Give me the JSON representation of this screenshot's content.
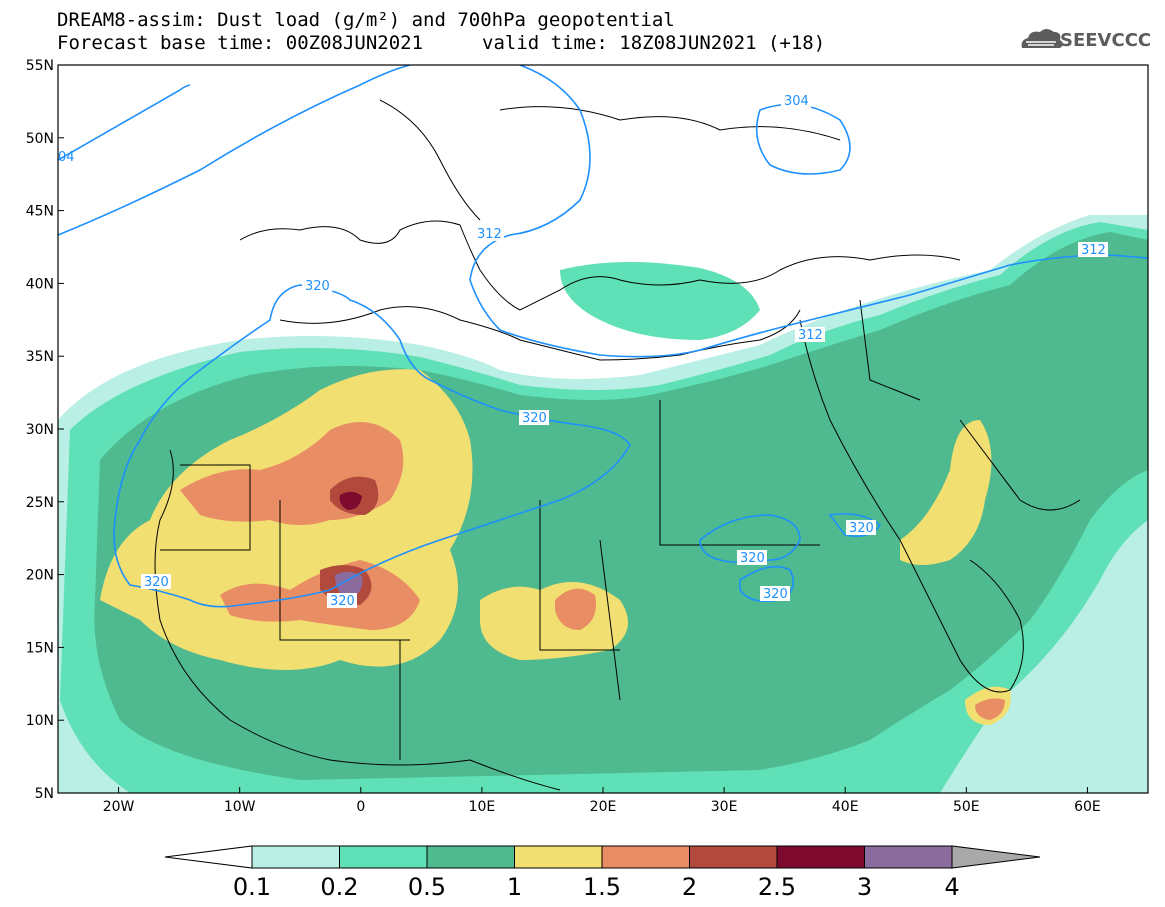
{
  "header": {
    "title_line1": "DREAM8-assim: Dust load (g/m²) and 700hPa geopotential",
    "title_line2": "Forecast base time: 00Z08JUN2021",
    "valid_time": "valid time: 18Z08JUN2021 (+18)"
  },
  "logo": {
    "text": "SEEVCCC",
    "icon": "cloud-logo-icon"
  },
  "axes": {
    "lat_labels": [
      "55N",
      "50N",
      "45N",
      "40N",
      "35N",
      "30N",
      "25N",
      "20N",
      "15N",
      "10N",
      "5N"
    ],
    "lon_labels": [
      "20W",
      "10W",
      "0",
      "10E",
      "20E",
      "30E",
      "40E",
      "50E",
      "60E"
    ]
  },
  "contour_labels": {
    "c304": "304",
    "c312": "312",
    "c320": "320",
    "c04": "04"
  },
  "colorbar": {
    "labels": [
      "0.1",
      "0.2",
      "0.5",
      "1",
      "1.5",
      "2",
      "2.5",
      "3",
      "4"
    ],
    "colors": [
      "#ffffff",
      "#b9efe4",
      "#5fe0b6",
      "#4fb98f",
      "#f2df71",
      "#e98d65",
      "#b14a3d",
      "#7e0b2f",
      "#8b6a9e",
      "#a9a9a9"
    ]
  },
  "map": {
    "extent": {
      "lon_min": -25,
      "lon_max": 65,
      "lat_min": 5,
      "lat_max": 55
    },
    "fill_colors": {
      "level_0_1": "#b9efe4",
      "level_0_2": "#5fe0b6",
      "level_0_5": "#4fb98f",
      "level_1": "#f2df71",
      "level_1_5": "#e98d65",
      "level_2": "#b14a3d",
      "level_2_5": "#7e0b2f",
      "level_3": "#8b6a9e"
    },
    "contour_color": "#1e90ff"
  }
}
